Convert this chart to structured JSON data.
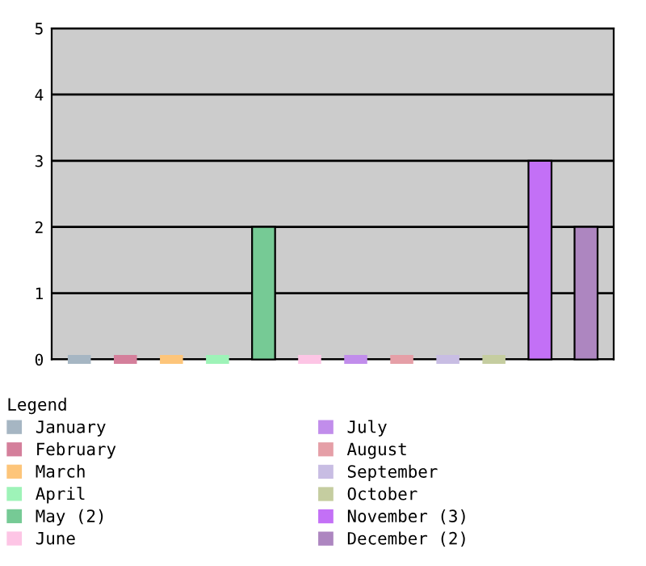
{
  "chart_data": {
    "type": "bar",
    "categories": [
      null,
      null,
      null,
      null,
      null,
      null,
      null,
      null,
      null,
      null,
      null,
      null
    ],
    "ylim": [
      0,
      5
    ],
    "yticks": [
      0,
      1,
      2,
      3,
      4,
      5
    ],
    "grid": "y",
    "legend": "bottom",
    "legend_title": "Legend",
    "series": [
      {
        "name": "January",
        "color": "#a6b6c3",
        "values": [
          0,
          null,
          null,
          null,
          null,
          null,
          null,
          null,
          null,
          null,
          null,
          null
        ]
      },
      {
        "name": "February",
        "color": "#d47f9b",
        "values": [
          null,
          0,
          null,
          null,
          null,
          null,
          null,
          null,
          null,
          null,
          null,
          null
        ]
      },
      {
        "name": "March",
        "color": "#fdc57a",
        "values": [
          null,
          null,
          0,
          null,
          null,
          null,
          null,
          null,
          null,
          null,
          null,
          null
        ]
      },
      {
        "name": "April",
        "color": "#9ef3b8",
        "values": [
          null,
          null,
          null,
          0,
          null,
          null,
          null,
          null,
          null,
          null,
          null,
          null
        ]
      },
      {
        "name": "May (2)",
        "color": "#76ca95",
        "values": [
          null,
          null,
          null,
          null,
          2,
          null,
          null,
          null,
          null,
          null,
          null,
          null
        ]
      },
      {
        "name": "June",
        "color": "#fdc5e5",
        "values": [
          null,
          null,
          null,
          null,
          null,
          0,
          null,
          null,
          null,
          null,
          null,
          null
        ]
      },
      {
        "name": "July",
        "color": "#c18deb",
        "values": [
          null,
          null,
          null,
          null,
          null,
          null,
          0,
          null,
          null,
          null,
          null,
          null
        ]
      },
      {
        "name": "August",
        "color": "#e59fa7",
        "values": [
          null,
          null,
          null,
          null,
          null,
          null,
          null,
          0,
          null,
          null,
          null,
          null
        ]
      },
      {
        "name": "September",
        "color": "#c8bde3",
        "values": [
          null,
          null,
          null,
          null,
          null,
          null,
          null,
          null,
          0,
          null,
          null,
          null
        ]
      },
      {
        "name": "October",
        "color": "#c5cda0",
        "values": [
          null,
          null,
          null,
          null,
          null,
          null,
          null,
          null,
          null,
          0,
          null,
          null
        ]
      },
      {
        "name": "November (3)",
        "color": "#c370f6",
        "values": [
          null,
          null,
          null,
          null,
          null,
          null,
          null,
          null,
          null,
          null,
          3,
          null
        ]
      },
      {
        "name": "December (2)",
        "color": "#ad86c0",
        "values": [
          null,
          null,
          null,
          null,
          null,
          null,
          null,
          null,
          null,
          null,
          null,
          2
        ]
      }
    ]
  }
}
